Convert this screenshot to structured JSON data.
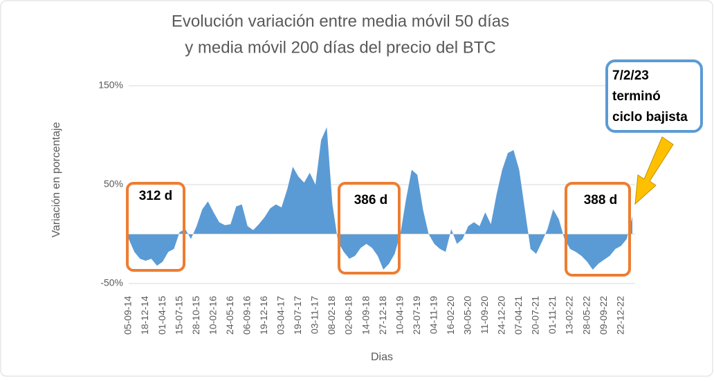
{
  "chart_data": {
    "type": "area",
    "title": [
      "Evolución variación entre media móvil 50 días",
      "y media móvil 200 días del precio del BTC"
    ],
    "y_label": "Variación en porcentaje",
    "x_label": "Dias",
    "color": "#5b9bd5",
    "ylim": [
      -50,
      150
    ],
    "yticks": [
      {
        "value": -50,
        "label": "-50%"
      },
      {
        "value": 50,
        "label": "50%"
      },
      {
        "value": 150,
        "label": "150%"
      }
    ],
    "grid": true,
    "categories": [
      "05-09-14",
      null,
      null,
      "18-12-14",
      null,
      null,
      "01-04-15",
      null,
      null,
      "15-07-15",
      null,
      null,
      "28-10-15",
      null,
      null,
      "10-02-16",
      null,
      null,
      "24-05-16",
      null,
      null,
      "06-09-16",
      null,
      null,
      "19-12-16",
      null,
      null,
      "03-04-17",
      null,
      null,
      "19-07-17",
      null,
      null,
      "03-11-17",
      null,
      null,
      "08-02-18",
      null,
      null,
      "02-06-18",
      null,
      null,
      "14-09-18",
      null,
      null,
      "27-12-18",
      null,
      null,
      "10-04-19",
      null,
      null,
      "23-07-19",
      null,
      null,
      "04-11-19",
      null,
      null,
      "16-02-20",
      null,
      null,
      "30-05-20",
      null,
      null,
      "11-09-20",
      null,
      null,
      "24-12-20",
      null,
      null,
      "07-04-21",
      null,
      null,
      "20-07-21",
      null,
      null,
      "01-11-21",
      null,
      null,
      "13-02-22",
      null,
      null,
      "28-05-22",
      null,
      null,
      "09-09-22",
      null,
      null,
      "22-12-22",
      null,
      null
    ],
    "values": [
      -5,
      -18,
      -25,
      -27,
      -25,
      -32,
      -28,
      -18,
      -15,
      2,
      5,
      -5,
      8,
      25,
      33,
      22,
      12,
      9,
      10,
      28,
      30,
      8,
      4,
      10,
      17,
      26,
      30,
      27,
      45,
      68,
      58,
      52,
      62,
      50,
      95,
      108,
      30,
      -8,
      -18,
      -25,
      -22,
      -14,
      -10,
      -14,
      -22,
      -36,
      -30,
      -20,
      0,
      35,
      65,
      60,
      25,
      0,
      -10,
      -15,
      -18,
      5,
      -10,
      -5,
      8,
      12,
      8,
      22,
      10,
      40,
      65,
      82,
      85,
      65,
      25,
      -15,
      -20,
      -8,
      5,
      25,
      15,
      -5,
      -15,
      -18,
      -22,
      -28,
      -36,
      -30,
      -26,
      -22,
      -15,
      -12,
      -5,
      18
    ],
    "annotations": [
      "312 d",
      "386 d",
      "388 d",
      [
        "7/2/23",
        "terminó",
        "ciclo bajista"
      ]
    ]
  }
}
